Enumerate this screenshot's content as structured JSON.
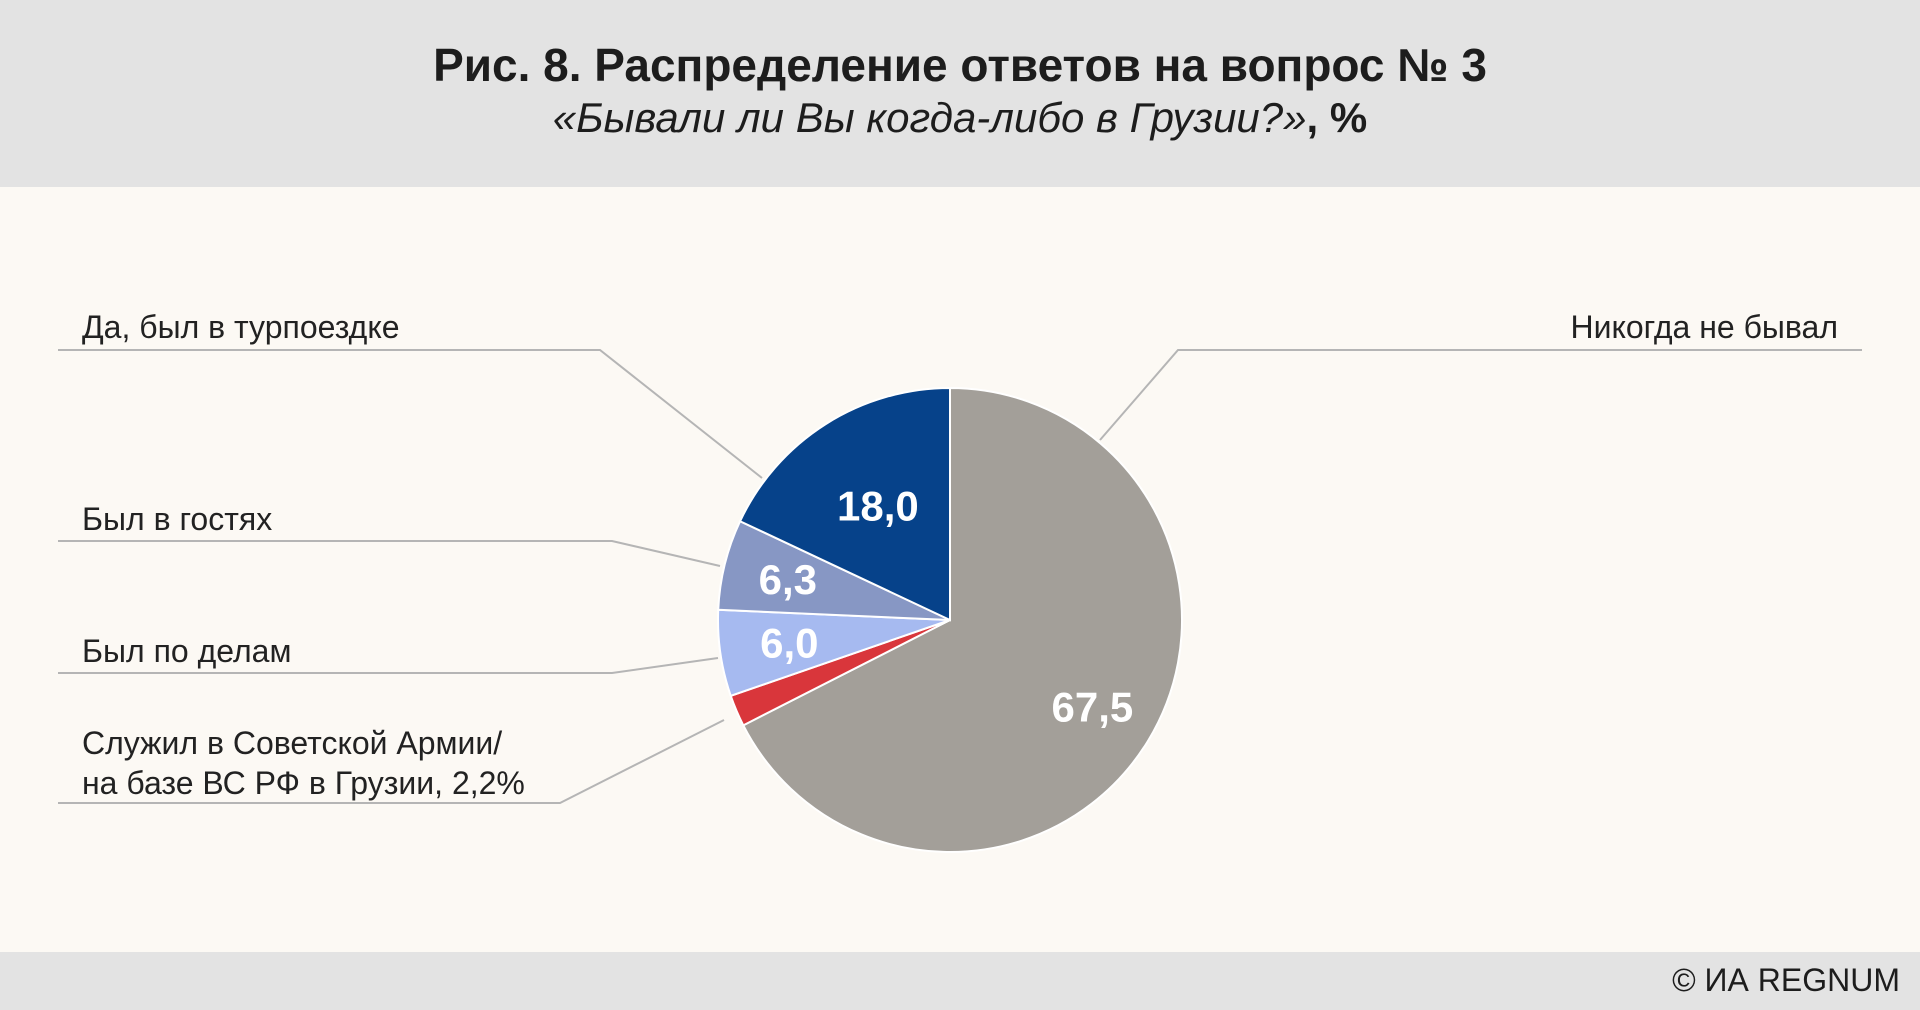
{
  "header": {
    "title": "Рис. 8. Распределение ответов на вопрос № 3",
    "subtitle_question": "«Бывали ли Вы когда-либо в Грузии?»",
    "subtitle_unit": ", %"
  },
  "footer": {
    "credit": "© ИА REGNUM"
  },
  "chart_data": {
    "type": "pie",
    "title": "Рис. 8. Распределение ответов на вопрос № 3",
    "subtitle": "«Бывали ли Вы когда-либо в Грузии?», %",
    "slices": [
      {
        "label": "Никогда не бывал",
        "value": 67.5,
        "value_label": "67,5",
        "color": "#a39f99"
      },
      {
        "label": "Служил в Советской Армии/ на базе ВС РФ в Грузии, 2,2%",
        "label_lines": [
          "Служил в Советской Армии/",
          "на базе ВС РФ в Грузии, 2,2%"
        ],
        "value": 2.2,
        "value_label": "",
        "color": "#d9363b"
      },
      {
        "label": "Был по делам",
        "value": 6.0,
        "value_label": "6,0",
        "color": "#a6baf0"
      },
      {
        "label": "Был в гостях",
        "value": 6.3,
        "value_label": "6,3",
        "color": "#8797c4"
      },
      {
        "label": "Да, был в турпоездке",
        "value": 18.0,
        "value_label": "18,0",
        "color": "#06428a"
      }
    ],
    "legend": "callout labels",
    "start": "top, clockwise"
  }
}
